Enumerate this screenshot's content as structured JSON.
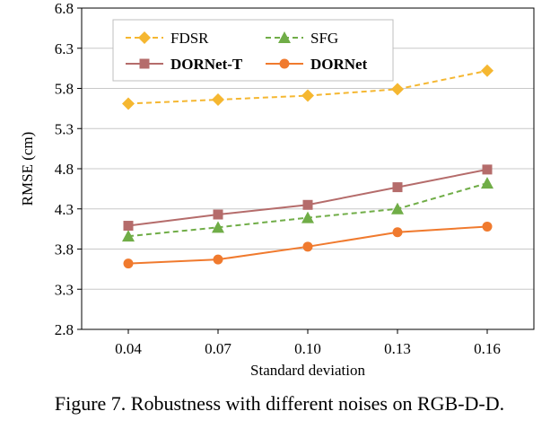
{
  "caption": "Figure 7. Robustness with different noises on RGB-D-D.",
  "colors": {
    "FDSR": "#f5b731",
    "SFG": "#70ad47",
    "DORNet-T": "#b56c6b",
    "DORNet": "#f07a2e",
    "grid": "#c8c8c8",
    "axis": "#000000"
  },
  "chart_data": {
    "type": "line",
    "xlabel": "Standard deviation",
    "ylabel": "RMSE (cm)",
    "ylim": [
      2.8,
      6.8
    ],
    "yticks": [
      "2.8",
      "3.3",
      "3.8",
      "4.3",
      "4.8",
      "5.3",
      "5.8",
      "6.3",
      "6.8"
    ],
    "categories": [
      "0.04",
      "0.07",
      "0.10",
      "0.13",
      "0.16"
    ],
    "grid": "horizontal",
    "legend_position": "top-left",
    "series": [
      {
        "name": "FDSR",
        "marker": "diamond",
        "dash": true,
        "bold": false,
        "values": [
          5.61,
          5.66,
          5.71,
          5.79,
          6.02
        ]
      },
      {
        "name": "SFG",
        "marker": "triangle",
        "dash": true,
        "bold": false,
        "values": [
          3.96,
          4.07,
          4.19,
          4.3,
          4.62
        ]
      },
      {
        "name": "DORNet-T",
        "marker": "square",
        "dash": false,
        "bold": true,
        "values": [
          4.09,
          4.23,
          4.35,
          4.57,
          4.79
        ]
      },
      {
        "name": "DORNet",
        "marker": "circle",
        "dash": false,
        "bold": true,
        "values": [
          3.62,
          3.67,
          3.83,
          4.01,
          4.08
        ]
      }
    ]
  }
}
